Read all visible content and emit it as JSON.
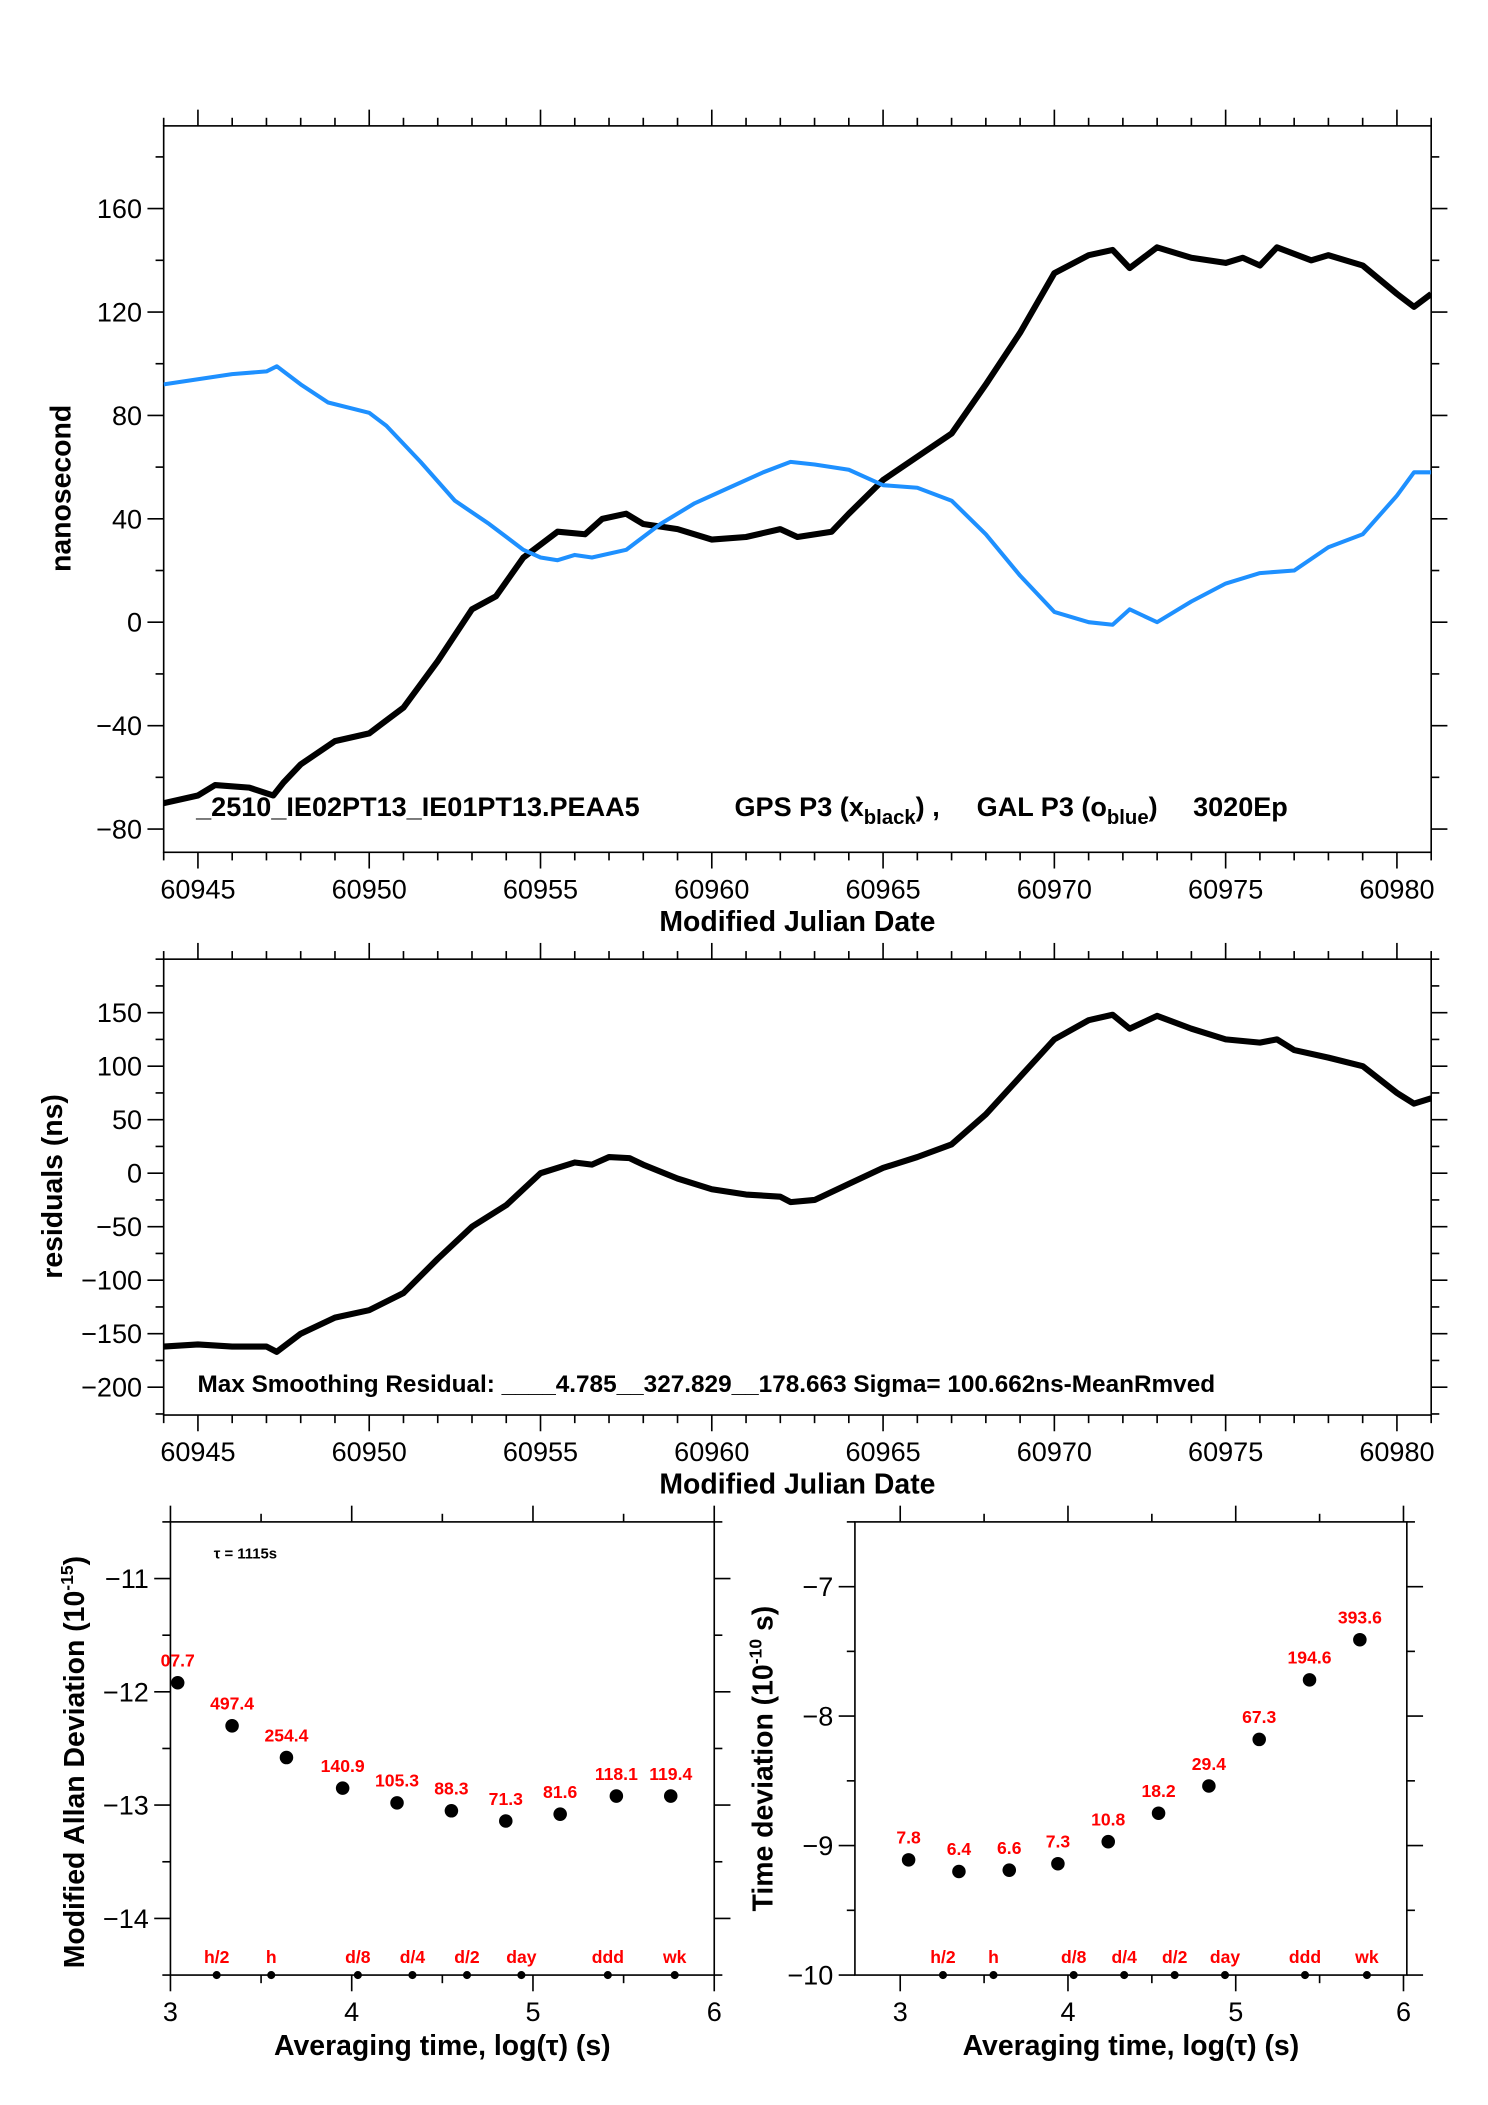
{
  "colors": {
    "gps": "#000000",
    "gal": "#1e90ff",
    "labels": "#ff0000"
  },
  "chart_data": [
    {
      "type": "line",
      "xlabel": "Modified Julian Date",
      "ylabel": "nanosecond",
      "xlim": [
        60944.0,
        60981.0
      ],
      "ylim": [
        -89,
        192
      ],
      "xticks": [
        60945,
        60950,
        60955,
        60960,
        60965,
        60970,
        60975,
        60980
      ],
      "yticks": [
        -80,
        -40,
        0,
        40,
        80,
        120,
        160
      ],
      "annotation": {
        "prefix": "_2510_IE02PT13_IE01PT13.PEAA5",
        "gps": "GPS P3 (x",
        "gps_sub": "black",
        "gps_close": ") ,",
        "gal": "GAL P3 (o",
        "gal_sub": "blue",
        "gal_close": ")",
        "suffix": "3020Ep"
      },
      "series": [
        {
          "color": "#000000",
          "x": [
            60944,
            60945,
            60945.5,
            60946.5,
            60947.2,
            60947.5,
            60948,
            60949,
            60950,
            60951,
            60952,
            60953,
            60953.7,
            60954.5,
            60955.5,
            60956.3,
            60956.8,
            60957.5,
            60958,
            60959,
            60960,
            60961,
            60962,
            60962.5,
            60963.5,
            60964,
            60965,
            60966,
            60967,
            60968,
            60969,
            60970,
            60971,
            60971.7,
            60972.2,
            60973,
            60974,
            60975,
            60975.5,
            60976,
            60976.5,
            60977.5,
            60978,
            60979,
            60980,
            60980.5,
            60981
          ],
          "y": [
            -70,
            -67,
            -63,
            -64,
            -67,
            -62,
            -55,
            -46,
            -43,
            -33,
            -15,
            5,
            10,
            25,
            35,
            34,
            40,
            42,
            38,
            36,
            32,
            33,
            36,
            33,
            35,
            42,
            55,
            64,
            73,
            92,
            112,
            135,
            142,
            144,
            137,
            145,
            141,
            139,
            141,
            138,
            145,
            140,
            142,
            138,
            127,
            122,
            127
          ]
        },
        {
          "color": "#1e90ff",
          "x": [
            60944,
            60945,
            60946,
            60947,
            60947.3,
            60948,
            60948.8,
            60950,
            60950.5,
            60951.5,
            60952.5,
            60953.5,
            60954.5,
            60955,
            60955.5,
            60956,
            60956.5,
            60957.5,
            60958.5,
            60959.5,
            60960.5,
            60961.5,
            60962.3,
            60963,
            60964,
            60965,
            60966,
            60967,
            60968,
            60969,
            60970,
            60971,
            60971.7,
            60972.2,
            60973,
            60974,
            60975,
            60976,
            60977,
            60978,
            60979,
            60980,
            60980.5,
            60981
          ],
          "y": [
            92,
            94,
            96,
            97,
            99,
            92,
            85,
            81,
            76,
            62,
            47,
            38,
            28,
            25,
            24,
            26,
            25,
            28,
            38,
            46,
            52,
            58,
            62,
            61,
            59,
            53,
            52,
            47,
            34,
            18,
            4,
            0,
            -1,
            5,
            0,
            8,
            15,
            19,
            20,
            29,
            34,
            49,
            58,
            58
          ]
        }
      ]
    },
    {
      "type": "line",
      "xlabel": "Modified Julian Date",
      "ylabel": "residuals (ns)",
      "xlim": [
        60944.0,
        60981.0
      ],
      "ylim": [
        -226,
        200
      ],
      "xticks": [
        60945,
        60950,
        60955,
        60960,
        60965,
        60970,
        60975,
        60980
      ],
      "yticks": [
        -200,
        -150,
        -100,
        -50,
        0,
        50,
        100,
        150
      ],
      "annotation": "Max Smoothing Residual: ____4.785__327.829__178.663  Sigma= 100.662ns-MeanRmved",
      "series": [
        {
          "color": "#000000",
          "x": [
            60944,
            60945,
            60946,
            60947,
            60947.3,
            60948,
            60949,
            60950,
            60951,
            60952,
            60953,
            60954,
            60955,
            60956,
            60956.5,
            60957,
            60957.6,
            60958,
            60959,
            60960,
            60961,
            60962,
            60962.3,
            60963,
            60964,
            60965,
            60966,
            60967,
            60968,
            60969,
            60970,
            60971,
            60971.7,
            60972.2,
            60973,
            60974,
            60975,
            60976,
            60976.5,
            60977,
            60978,
            60979,
            60980,
            60980.5,
            60981
          ],
          "y": [
            -162,
            -160,
            -162,
            -162,
            -167,
            -150,
            -135,
            -128,
            -112,
            -80,
            -50,
            -30,
            0,
            10,
            8,
            15,
            14,
            8,
            -5,
            -15,
            -20,
            -22,
            -27,
            -25,
            -10,
            5,
            15,
            27,
            55,
            90,
            125,
            143,
            148,
            135,
            147,
            135,
            125,
            122,
            125,
            115,
            108,
            100,
            75,
            65,
            70
          ]
        }
      ]
    },
    {
      "type": "scatter",
      "xlabel": "Averaging time, log(τ) (s)",
      "ylabel": "Modified Allan Deviation (10",
      "ylabel_sup": "-15",
      "ylabel_close": ")",
      "tau_note": "τ = 1115s",
      "xlim": [
        3,
        6
      ],
      "ylim": [
        -14.5,
        -10.5
      ],
      "xticks": [
        3,
        4,
        5,
        6
      ],
      "yticks": [
        -14,
        -13,
        -12,
        -11
      ],
      "x": [
        3.04,
        3.34,
        3.64,
        3.95,
        4.25,
        4.55,
        4.85,
        5.15,
        5.46,
        5.76
      ],
      "y": [
        -11.92,
        -12.3,
        -12.58,
        -12.85,
        -12.98,
        -13.05,
        -13.14,
        -13.08,
        -12.92,
        -12.92
      ],
      "point_labels": [
        "07.7",
        "497.4",
        "254.4",
        "140.9",
        "105.3",
        "88.3",
        "71.3",
        "81.6",
        "118.1",
        "119.4"
      ],
      "markers": {
        "x": [
          3.255,
          3.556,
          4.034,
          4.335,
          4.636,
          4.936,
          5.413,
          5.782
        ],
        "labels": [
          "h/2",
          "h",
          "d/8",
          "d/4",
          "d/2",
          "day",
          "ddd",
          "wk"
        ]
      }
    },
    {
      "type": "scatter",
      "xlabel": "Averaging time, log(τ) (s)",
      "ylabel": "Time deviation (10",
      "ylabel_sup": "-10",
      "ylabel_close": " s)",
      "xlim": [
        2.73,
        6.02
      ],
      "ylim": [
        -10,
        -6.5
      ],
      "xticks": [
        3,
        4,
        5,
        6
      ],
      "yticks": [
        -10,
        -9,
        -8,
        -7
      ],
      "x": [
        3.05,
        3.35,
        3.65,
        3.94,
        4.24,
        4.54,
        4.84,
        5.14,
        5.44,
        5.74
      ],
      "y": [
        -9.11,
        -9.2,
        -9.19,
        -9.14,
        -8.97,
        -8.75,
        -8.54,
        -8.18,
        -7.72,
        -7.41
      ],
      "point_labels": [
        "7.8",
        "6.4",
        "6.6",
        "7.3",
        "10.8",
        "18.2",
        "29.4",
        "67.3",
        "194.6",
        "393.6"
      ],
      "markers": {
        "x": [
          3.255,
          3.556,
          4.034,
          4.335,
          4.636,
          4.936,
          5.413,
          5.782
        ],
        "labels": [
          "h/2",
          "h",
          "d/8",
          "d/4",
          "d/2",
          "day",
          "ddd",
          "wk"
        ]
      }
    }
  ]
}
